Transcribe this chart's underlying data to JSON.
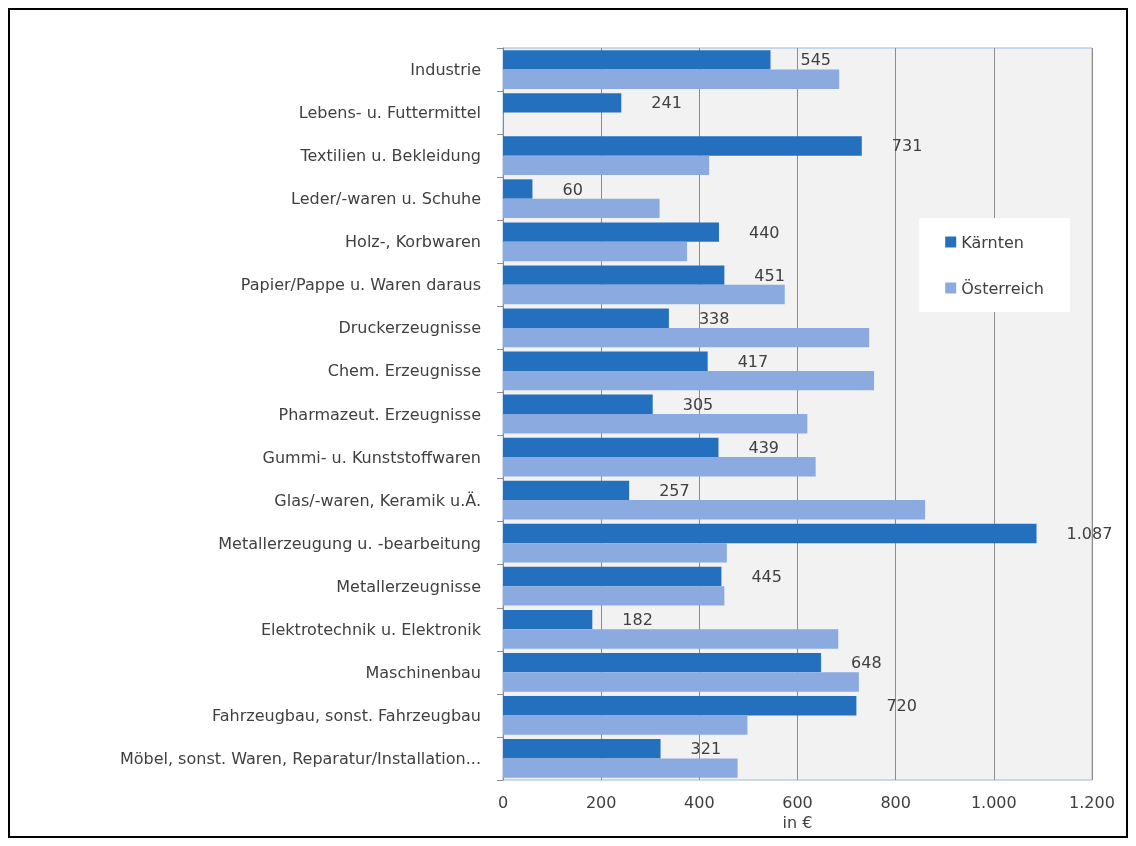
{
  "chart_data": {
    "type": "bar",
    "orientation": "horizontal",
    "xlabel": "in €",
    "categories": [
      "Industrie",
      "Lebens- u. Futtermittel",
      "Textilien u. Bekleidung",
      "Leder/-waren u. Schuhe",
      "Holz-, Korbwaren",
      "Papier/Pappe u. Waren daraus",
      "Druckerzeugnisse",
      "Chem. Erzeugnisse",
      "Pharmazeut. Erzeugnisse",
      "Gummi- u. Kunststoffwaren",
      "Glas/-waren, Keramik u.Ä.",
      "Metallerzeugung u. -bearbeitung",
      "Metallerzeugnisse",
      "Elektrotechnik u. Elektronik",
      "Maschinenbau",
      "Fahrzeugbau, sonst. Fahrzeugbau",
      "Möbel, sonst. Waren, Reparatur/Installation..."
    ],
    "series": [
      {
        "name": "Kärnten",
        "color": "#2470bf",
        "values": [
          545,
          241,
          731,
          60,
          440,
          451,
          338,
          417,
          305,
          439,
          257,
          1087,
          445,
          182,
          648,
          720,
          321
        ],
        "value_labels": [
          "545",
          "241",
          "731",
          "60",
          "440",
          "451",
          "338",
          "417",
          "305",
          "439",
          "257",
          "1.087",
          "445",
          "182",
          "648",
          "720",
          "321"
        ]
      },
      {
        "name": "Österreich",
        "color": "#8aaae0",
        "values": [
          685,
          null,
          420,
          319,
          375,
          574,
          746,
          756,
          620,
          637,
          860,
          456,
          451,
          683,
          725,
          498,
          478
        ]
      }
    ],
    "xlim": [
      0,
      1200
    ],
    "xticks": [
      0,
      200,
      400,
      600,
      800,
      {
        "value": 1000,
        "label": "1.000"
      },
      {
        "value": 1200,
        "label": "1.200"
      }
    ],
    "grid": "x",
    "legend": "right"
  }
}
